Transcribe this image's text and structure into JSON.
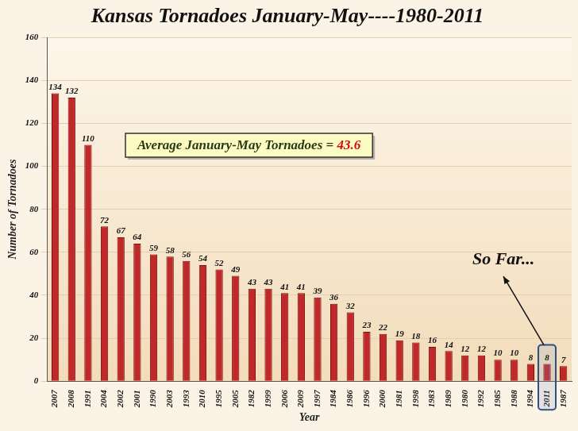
{
  "chart_data": {
    "type": "bar",
    "title": "Kansas Tornadoes January-May----1980-2011",
    "x_label": "Year",
    "y_label": "Number of Tornadoes",
    "categories": [
      "2007",
      "2008",
      "1991",
      "2004",
      "2002",
      "2001",
      "1990",
      "2003",
      "1993",
      "2010",
      "1995",
      "2005",
      "1982",
      "1999",
      "2006",
      "2009",
      "1997",
      "1984",
      "1986",
      "1996",
      "2000",
      "1981",
      "1998",
      "1983",
      "1989",
      "1980",
      "1992",
      "1985",
      "1988",
      "1994",
      "2011",
      "1987"
    ],
    "values": [
      134,
      132,
      110,
      72,
      67,
      64,
      59,
      58,
      56,
      54,
      52,
      49,
      43,
      43,
      41,
      41,
      39,
      36,
      32,
      23,
      22,
      19,
      18,
      16,
      14,
      12,
      12,
      10,
      10,
      8,
      8,
      7
    ],
    "color": "#c0282a",
    "ylim": [
      0,
      160
    ],
    "yticks": [
      0,
      20,
      40,
      60,
      80,
      100,
      120,
      140,
      160
    ],
    "grid": true,
    "data_labels": true,
    "annotations": [
      {
        "text": "Average January-May Tornadoes = 43.6"
      },
      {
        "text": "So Far...",
        "category": "2011"
      }
    ]
  }
}
